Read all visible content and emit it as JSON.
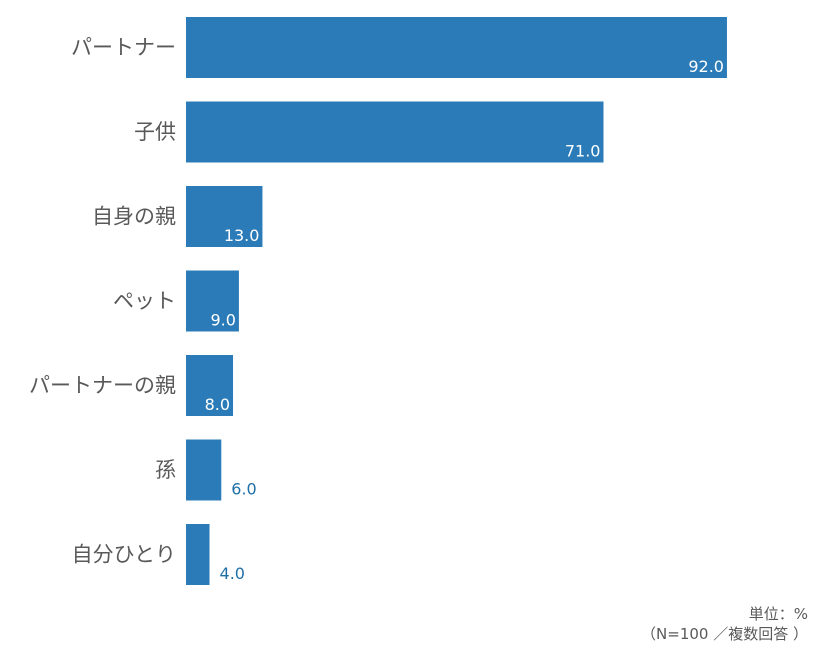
{
  "chart_data": {
    "type": "bar",
    "orientation": "horizontal",
    "categories": [
      "パートナー",
      "子供",
      "自身の親",
      "ペット",
      "パートナーの親",
      "孫",
      "自分ひとり"
    ],
    "values": [
      92.0,
      71.0,
      13.0,
      9.0,
      8.0,
      6.0,
      4.0
    ],
    "value_labels": [
      "92.0",
      "71.0",
      "13.0",
      "9.0",
      "8.0",
      "6.0",
      "4.0"
    ],
    "xlim": [
      0,
      100
    ],
    "grid": false,
    "legend": "none",
    "bar_color": "#2b7bb9",
    "label_inside_color": "#ffffff",
    "label_outside_color": "#1f6fa8",
    "category_color": "#595959"
  },
  "note": {
    "unit": "単位：%",
    "sample": "（N=100 ／複数回答 ）"
  }
}
